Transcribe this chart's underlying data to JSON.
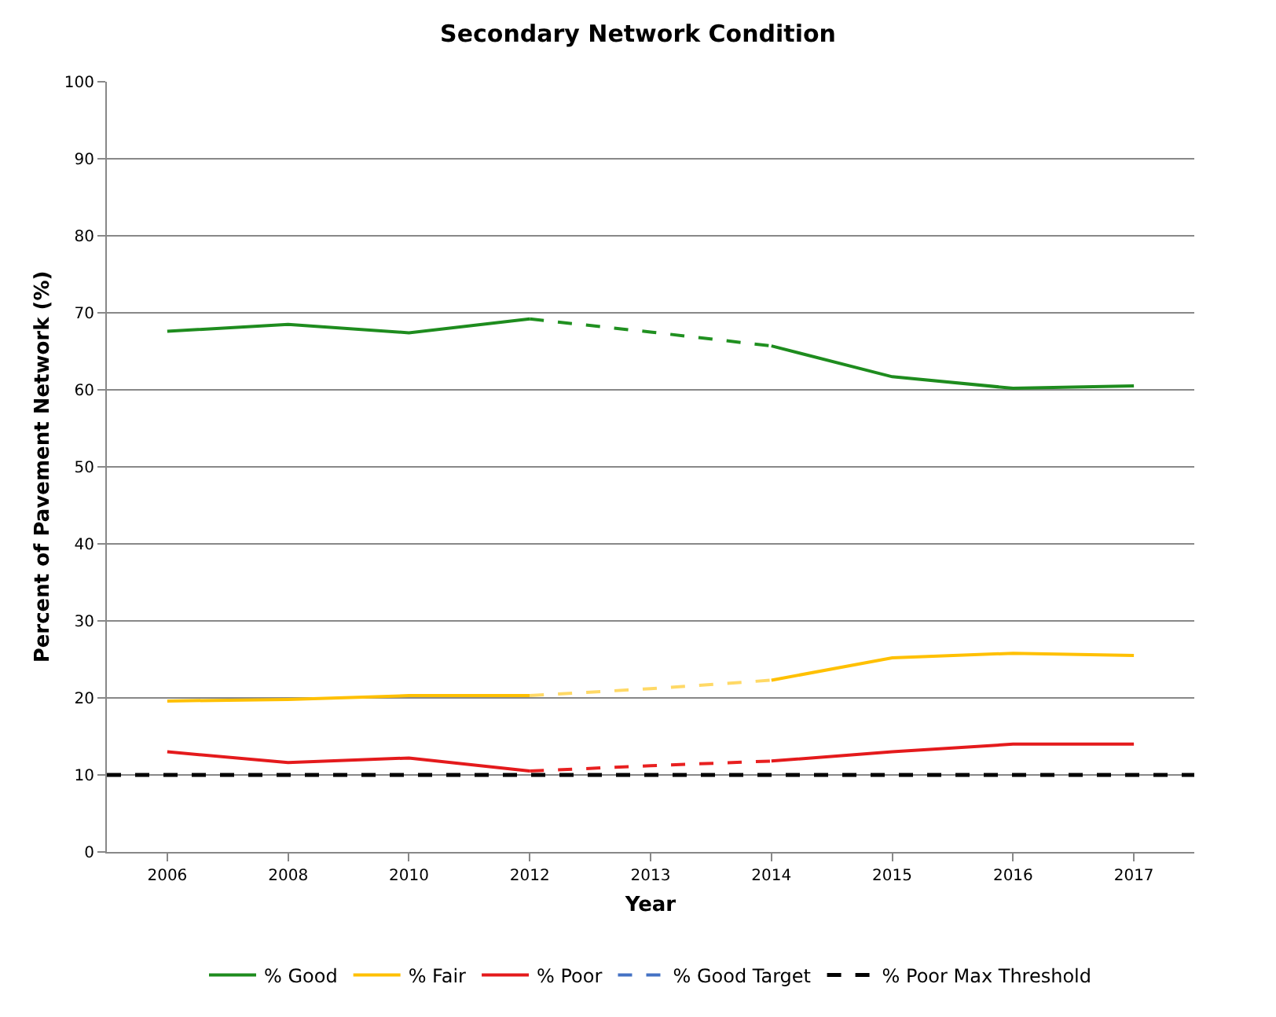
{
  "chart_data": {
    "type": "line",
    "title": "Secondary Network Condition",
    "xlabel": "Year",
    "ylabel": "Percent of Pavement Network (%)",
    "categories": [
      "2006",
      "2008",
      "2010",
      "2012",
      "2013",
      "2014",
      "2015",
      "2016",
      "2017"
    ],
    "series": [
      {
        "name": "% Good",
        "color": "#1e8c1e",
        "values": [
          67.6,
          68.5,
          67.4,
          69.2,
          null,
          65.7,
          61.7,
          60.2,
          60.5
        ]
      },
      {
        "name": "% Fair",
        "color": "#ffc000",
        "values": [
          19.6,
          19.8,
          20.3,
          20.3,
          null,
          22.3,
          25.2,
          25.8,
          25.5
        ]
      },
      {
        "name": "% Poor",
        "color": "#e41a1c",
        "values": [
          13.0,
          11.6,
          12.2,
          10.5,
          null,
          11.8,
          13.0,
          14.0,
          14.0
        ]
      },
      {
        "color": "#209020",
        "line_style": "dashed",
        "values": [
          null,
          null,
          null,
          69.2,
          67.5,
          65.7,
          null,
          null,
          null
        ]
      },
      {
        "color": "#ffd966",
        "line_style": "dashed",
        "values": [
          null,
          null,
          null,
          20.3,
          21.2,
          22.3,
          null,
          null,
          null
        ]
      },
      {
        "color": "#e82020",
        "line_style": "dashed",
        "values": [
          null,
          null,
          null,
          10.5,
          11.2,
          11.8,
          null,
          null,
          null
        ]
      },
      {
        "name": "% Good Target",
        "color": "#4472c4",
        "line_style": "dashed",
        "values": [
          null,
          null,
          null,
          null,
          null,
          null,
          null,
          null,
          null
        ]
      }
    ],
    "ref_lines": [
      {
        "axis": "y",
        "value": 10,
        "label": "% Poor Max Threshold",
        "color": "#000000",
        "line_style": "dashed"
      }
    ],
    "ylim": [
      0,
      100
    ],
    "yticks": [
      0,
      10,
      20,
      30,
      40,
      50,
      60,
      70,
      80,
      90,
      100
    ],
    "grid": "y",
    "legend": "bottom",
    "marker": "none"
  }
}
